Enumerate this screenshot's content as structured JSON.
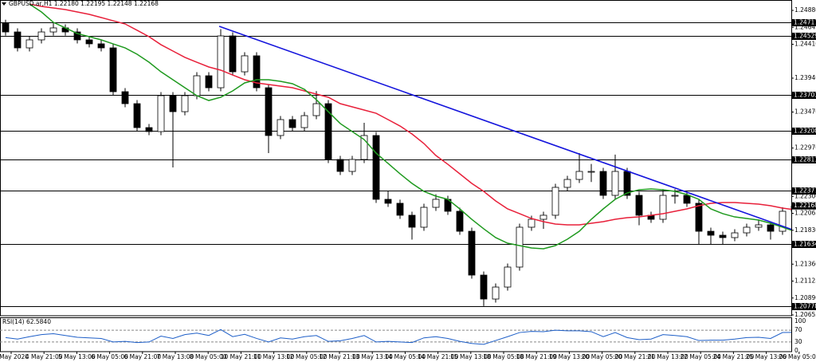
{
  "chart_data": [
    {
      "type": "candlestick",
      "title": "GBPUSD.ar,H1  1.22180 1.22195 1.22148 1.22168",
      "x_labels": [
        "4 May 2020",
        "4 May 21:00",
        "5 May 13:00",
        "6 May 05:00",
        "6 May 21:00",
        "7 May 13:00",
        "8 May 05:00",
        "10 May 21:00",
        "11 May 13:00",
        "12 May 05:00",
        "12 May 21:00",
        "13 May 13:00",
        "14 May 05:00",
        "14 May 21:00",
        "15 May 13:00",
        "18 May 05:00",
        "18 May 21:00",
        "19 May 13:00",
        "20 May 05:00",
        "20 May 21:00",
        "21 May 13:00",
        "22 May 05:00",
        "24 May 21:00",
        "25 May 13:00",
        "26 May 05:00"
      ],
      "open": [
        1.247,
        1.24581,
        1.2436,
        1.24471,
        1.24581,
        1.24637,
        1.24581,
        1.24471,
        1.24416,
        1.2436,
        1.23752,
        1.23586,
        1.23254,
        1.23199,
        1.23697,
        1.23475,
        1.23697,
        1.23973,
        1.23807,
        1.24526,
        1.24028,
        1.2425,
        1.23807,
        1.23144,
        1.23365,
        1.23254,
        1.2342,
        1.23586,
        1.22812,
        1.22646,
        1.22812,
        1.23144,
        1.22259,
        1.22204,
        1.22038,
        1.21872,
        1.22148,
        1.22259,
        1.22093,
        1.21816,
        1.21208,
        1.20876,
        1.21042,
        1.21319,
        1.21872,
        1.21982,
        1.22038,
        1.22425,
        1.22535,
        1.22646,
        1.22646,
        1.22314,
        1.22646,
        1.22314,
        1.22038,
        1.21982,
        1.22314,
        1.22314,
        1.22204,
        1.21816,
        1.21761,
        1.21728,
        1.21794,
        1.21872,
        1.21905,
        1.21816,
        1.22093
      ],
      "high": [
        1.2475,
        1.24631,
        1.24521,
        1.24631,
        1.24717,
        1.24687,
        1.24631,
        1.24521,
        1.24466,
        1.2441,
        1.23802,
        1.23636,
        1.23304,
        1.23747,
        1.23747,
        1.23747,
        1.24023,
        1.24023,
        1.2462,
        1.24576,
        1.243,
        1.243,
        1.23857,
        1.23415,
        1.23415,
        1.2347,
        1.2376,
        1.23636,
        1.22862,
        1.22862,
        1.2332,
        1.23194,
        1.22377,
        1.22254,
        1.22088,
        1.22198,
        1.2233,
        1.22309,
        1.22143,
        1.21866,
        1.21258,
        1.21092,
        1.21369,
        1.21922,
        1.22032,
        1.22088,
        1.22475,
        1.22585,
        1.229,
        1.2275,
        1.22696,
        1.2288,
        1.22696,
        1.22364,
        1.22088,
        1.224,
        1.224,
        1.22364,
        1.22254,
        1.21866,
        1.21811,
        1.21844,
        1.21922,
        1.2198,
        1.21955,
        1.2215,
        1.22195
      ],
      "low": [
        1.24531,
        1.2431,
        1.2431,
        1.24421,
        1.24531,
        1.24531,
        1.24421,
        1.24366,
        1.2431,
        1.23702,
        1.23536,
        1.23204,
        1.23149,
        1.23149,
        1.22701,
        1.23425,
        1.23647,
        1.23757,
        1.23757,
        1.23978,
        1.23978,
        1.23757,
        1.229,
        1.23094,
        1.23204,
        1.23204,
        1.2337,
        1.22762,
        1.22596,
        1.22596,
        1.22762,
        1.22209,
        1.22154,
        1.21988,
        1.217,
        1.21822,
        1.22098,
        1.22043,
        1.21766,
        1.21158,
        1.20778,
        1.20826,
        1.20992,
        1.21269,
        1.21822,
        1.2185,
        1.21988,
        1.22375,
        1.22485,
        1.225,
        1.22264,
        1.22264,
        1.22264,
        1.219,
        1.21932,
        1.21932,
        1.222,
        1.22154,
        1.21634,
        1.21634,
        1.21634,
        1.21678,
        1.21744,
        1.21822,
        1.217,
        1.21766,
        1.22043
      ],
      "close": [
        1.24581,
        1.2436,
        1.24471,
        1.24581,
        1.24637,
        1.24581,
        1.24471,
        1.24416,
        1.2436,
        1.23752,
        1.23586,
        1.23254,
        1.23199,
        1.23697,
        1.23475,
        1.23697,
        1.23973,
        1.23807,
        1.24526,
        1.24028,
        1.2425,
        1.23807,
        1.23144,
        1.23365,
        1.23254,
        1.2342,
        1.23586,
        1.22812,
        1.22646,
        1.22812,
        1.23144,
        1.22259,
        1.22204,
        1.22038,
        1.21872,
        1.22148,
        1.22259,
        1.22093,
        1.21816,
        1.21208,
        1.20876,
        1.21042,
        1.21319,
        1.21872,
        1.21982,
        1.22038,
        1.22425,
        1.22535,
        1.22646,
        1.22646,
        1.22314,
        1.22646,
        1.22314,
        1.22038,
        1.21982,
        1.22314,
        1.22314,
        1.22204,
        1.21816,
        1.21761,
        1.21728,
        1.21794,
        1.21872,
        1.21905,
        1.21816,
        1.22093,
        1.22168
      ],
      "overlays": [
        {
          "color": "#e8203a",
          "values": [
            null,
            null,
            1.24968,
            1.24935,
            1.24913,
            1.24891,
            1.24858,
            1.24825,
            1.24781,
            1.24736,
            1.24692,
            1.24604,
            1.24515,
            1.24404,
            1.24316,
            1.24228,
            1.24161,
            1.24095,
            1.24051,
            1.23984,
            1.23918,
            1.23874,
            1.23851,
            1.23829,
            1.23807,
            1.23763,
            1.23719,
            1.23675,
            1.23586,
            1.23542,
            1.23498,
            1.23453,
            1.23365,
            1.23276,
            1.23166,
            1.23033,
            1.22867,
            1.22745,
            1.22613,
            1.2248,
            1.22369,
            1.22237,
            1.22126,
            1.2206,
            1.21993,
            1.21949,
            1.21916,
            1.21905,
            1.21905,
            1.21927,
            1.21949,
            1.21982,
            1.22004,
            1.22015,
            1.22038,
            1.2206,
            1.22093,
            1.22126,
            1.2217,
            1.22204,
            1.22215,
            1.22215,
            1.22204,
            1.22192,
            1.2217,
            1.22137,
            1.22115
          ]
        },
        {
          "color": "#1f9a1f",
          "values": [
            null,
            null,
            1.24968,
            1.24858,
            1.24714,
            1.24637,
            1.24559,
            1.24515,
            1.24471,
            1.24415,
            1.2436,
            1.24272,
            1.24161,
            1.24028,
            1.23918,
            1.23807,
            1.23697,
            1.2363,
            1.23675,
            1.23763,
            1.23874,
            1.23918,
            1.23918,
            1.23896,
            1.23863,
            1.23785,
            1.23641,
            1.23475,
            1.2331,
            1.23199,
            1.23088,
            1.229,
            1.22757,
            1.22613,
            1.2248,
            1.22369,
            1.22303,
            1.22259,
            1.22126,
            1.21982,
            1.2185,
            1.21728,
            1.2165,
            1.21617,
            1.21584,
            1.21573,
            1.21617,
            1.21706,
            1.21816,
            1.21982,
            1.22126,
            1.22259,
            1.22347,
            1.22392,
            1.22403,
            1.22392,
            1.22369,
            1.22325,
            1.22259,
            1.22126,
            1.2206,
            1.22015,
            1.21993,
            1.21971,
            1.21927,
            1.21872,
            1.21816
          ]
        }
      ],
      "trendline": {
        "color": "#1414dc",
        "x": [
          17.87,
          66.2
        ],
        "values": [
          1.24659,
          1.21816
        ]
      },
      "levels": [
        1.24717,
        1.24529,
        1.23703,
        1.23208,
        1.22811,
        1.22377,
        1.21634,
        1.20778
      ],
      "last_price": 1.22168,
      "ylim": [
        1.20655,
        1.25024
      ],
      "yticks": [
        {
          "value": 1.2488,
          "label": "1.24880"
        },
        1.24645,
        {
          "value": 1.2441,
          "label": "1.24410"
        },
        {
          "value": 1.2394,
          "label": "1.23940"
        },
        {
          "value": 1.2347,
          "label": "1.23470"
        },
        {
          "value": 1.2297,
          "label": "1.22970"
        },
        {
          "value": 1.223,
          "label": "1.22300"
        },
        1.22065,
        {
          "value": 1.2183,
          "label": "1.21830"
        },
        {
          "value": 1.2136,
          "label": "1.21360"
        },
        1.21125,
        {
          "value": 1.2089,
          "label": "1.20890"
        },
        1.20655
      ]
    },
    {
      "type": "line",
      "title": "RSI(14) 62.5840",
      "color": "#1e5fc8",
      "values": [
        45,
        40,
        48,
        55,
        58,
        52,
        46,
        44,
        42,
        30,
        32,
        28,
        30,
        50,
        42,
        55,
        60,
        52,
        72,
        48,
        56,
        42,
        30,
        44,
        40,
        48,
        52,
        32,
        34,
        42,
        52,
        30,
        32,
        30,
        28,
        44,
        48,
        42,
        32,
        25,
        22,
        35,
        48,
        62,
        66,
        65,
        70,
        68,
        68,
        65,
        48,
        62,
        45,
        38,
        40,
        55,
        52,
        48,
        35,
        36,
        36,
        40,
        45,
        46,
        42,
        62,
        62.58
      ],
      "ylim": [
        0,
        100
      ],
      "yticks": [
        0,
        30,
        70,
        100
      ]
    }
  ]
}
